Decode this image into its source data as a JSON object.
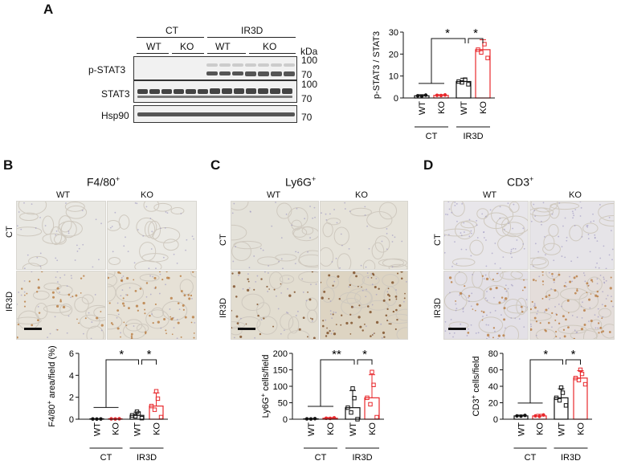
{
  "panel_letters": {
    "a": "A",
    "b": "B",
    "c": "C",
    "d": "D"
  },
  "colors": {
    "wt": "#111111",
    "ko": "#e8282c",
    "tissue": "#ecebe6",
    "stain": "#b87a3e",
    "nuclei": "#9b95c0"
  },
  "blot": {
    "group_labels": [
      "CT",
      "IR3D"
    ],
    "genotype_labels": [
      "WT",
      "KO",
      "WT",
      "KO"
    ],
    "kda_label": "kDa",
    "rows": [
      {
        "name": "p-STAT3",
        "markers": [
          "100",
          "70"
        ]
      },
      {
        "name": "STAT3",
        "markers": [
          "100",
          "70"
        ]
      },
      {
        "name": "Hsp90",
        "markers": [
          "70"
        ]
      }
    ]
  },
  "histology": [
    {
      "title": "F4/80",
      "sup": "+",
      "cols": [
        "WT",
        "KO"
      ],
      "rows": [
        "CT",
        "IR3D"
      ]
    },
    {
      "title": "Ly6G",
      "sup": "+",
      "cols": [
        "WT",
        "KO"
      ],
      "rows": [
        "CT",
        "IR3D"
      ]
    },
    {
      "title": "CD3",
      "sup": "+",
      "cols": [
        "WT",
        "KO"
      ],
      "rows": [
        "CT",
        "IR3D"
      ]
    }
  ],
  "chart_data": [
    {
      "type": "bar",
      "panel": "A",
      "ylabel": "p-STAT3 / STAT3",
      "ylim": [
        0,
        30
      ],
      "yticks": [
        0,
        10,
        20,
        30
      ],
      "categories": [
        "WT",
        "KO",
        "WT",
        "KO"
      ],
      "groups": [
        "CT",
        "IR3D"
      ],
      "values": [
        1,
        1.2,
        7.5,
        22
      ],
      "errors": [
        0.5,
        0.3,
        1.5,
        4.5
      ],
      "significance": [
        "*",
        "*"
      ]
    },
    {
      "type": "bar",
      "panel": "B",
      "ylabel_main": "F4/80",
      "ylabel_sup": "+",
      "ylabel_rest": " area/field (%)",
      "ylim": [
        0,
        6
      ],
      "yticks": [
        0,
        2,
        4,
        6
      ],
      "categories": [
        "WT",
        "KO",
        "WT",
        "KO"
      ],
      "groups": [
        "CT",
        "IR3D"
      ],
      "values": [
        0.02,
        0.03,
        0.35,
        1.2
      ],
      "errors": [
        0.01,
        0.02,
        0.3,
        1.2
      ],
      "significance": [
        "*",
        "*"
      ]
    },
    {
      "type": "bar",
      "panel": "C",
      "ylabel_main": "Ly6G",
      "ylabel_sup": "+",
      "ylabel_rest": " cells/field",
      "ylim": [
        0,
        200
      ],
      "yticks": [
        0,
        50,
        100,
        150,
        200
      ],
      "categories": [
        "WT",
        "KO",
        "WT",
        "KO"
      ],
      "groups": [
        "CT",
        "IR3D"
      ],
      "values": [
        1,
        3,
        35,
        65
      ],
      "errors": [
        1,
        2,
        52,
        70
      ],
      "significance": [
        "**",
        "*"
      ]
    },
    {
      "type": "bar",
      "panel": "D",
      "ylabel_main": "CD3",
      "ylabel_sup": "+",
      "ylabel_rest": " cells/field",
      "ylim": [
        0,
        80
      ],
      "yticks": [
        0,
        20,
        40,
        60,
        80
      ],
      "categories": [
        "WT",
        "KO",
        "WT",
        "KO"
      ],
      "groups": [
        "CT",
        "IR3D"
      ],
      "values": [
        4,
        4,
        26,
        50
      ],
      "errors": [
        1,
        2,
        11,
        9
      ],
      "significance": [
        "*",
        "*"
      ]
    }
  ]
}
